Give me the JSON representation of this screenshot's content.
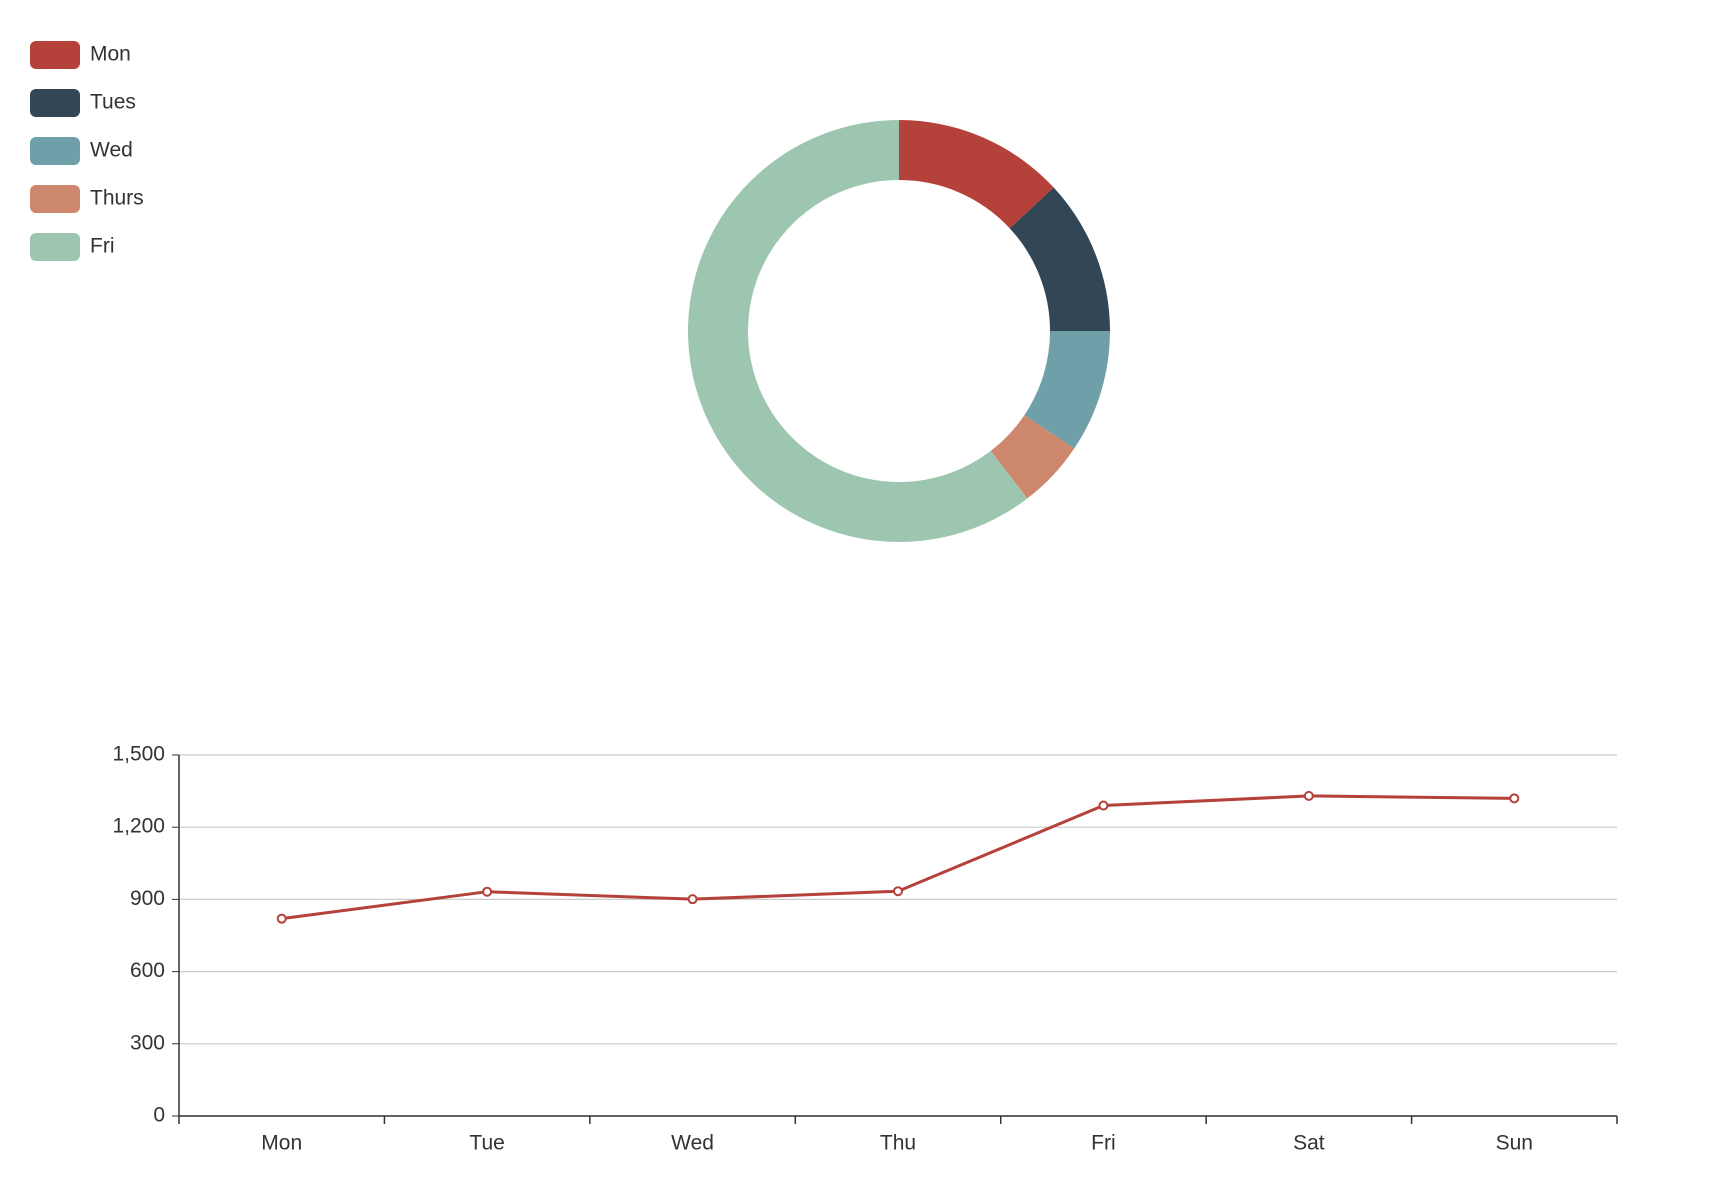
{
  "chart_data": [
    {
      "type": "pie",
      "categories": [
        "Mon",
        "Tues",
        "Wed",
        "Thurs",
        "Fri"
      ],
      "values": [
        13.1,
        11.9,
        9.4,
        5.2,
        60.4
      ],
      "colors": [
        "#b5423a",
        "#334656",
        "#6fa0aa",
        "#cd876d",
        "#9dc6b1"
      ],
      "legend": "top-left"
    },
    {
      "type": "line",
      "categories": [
        "Mon",
        "Tue",
        "Wed",
        "Thu",
        "Fri",
        "Sat",
        "Sun"
      ],
      "values": [
        820,
        932,
        901,
        934,
        1290,
        1330,
        1320
      ],
      "color": "#b5423a",
      "ylim": [
        0,
        1500
      ],
      "yticks": [
        0,
        300,
        600,
        900,
        {
          "value": 1200,
          "label": "1,200"
        },
        {
          "value": 1500,
          "label": "1,500"
        }
      ],
      "grid": true
    }
  ]
}
